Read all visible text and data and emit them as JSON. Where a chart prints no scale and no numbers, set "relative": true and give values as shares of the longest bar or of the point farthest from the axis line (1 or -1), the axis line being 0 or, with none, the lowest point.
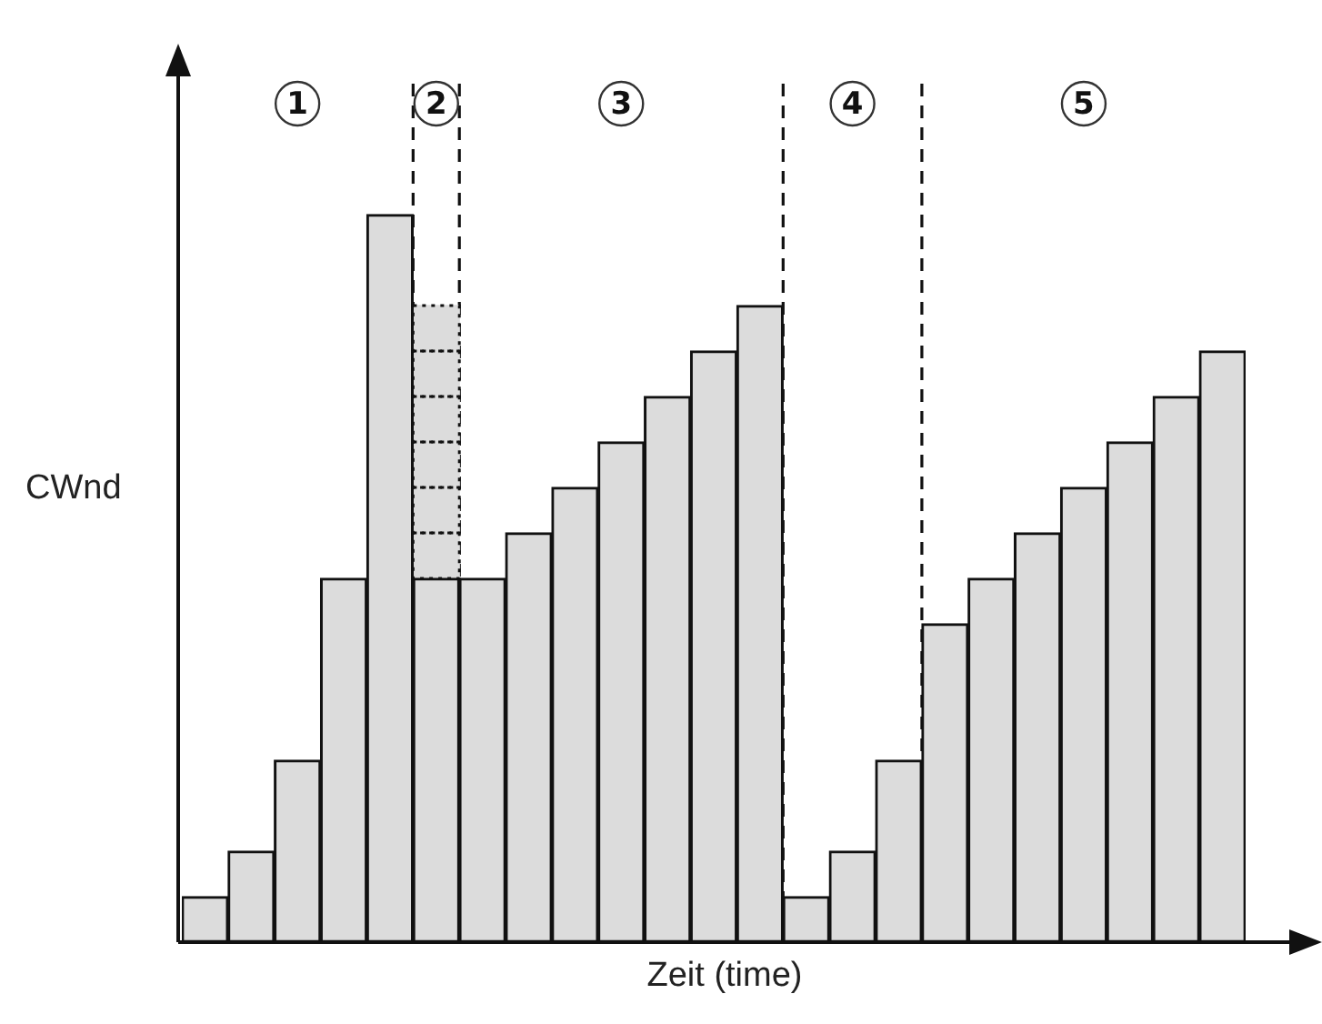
{
  "chart_data": {
    "type": "bar",
    "relative": true,
    "stacked": true,
    "grid": false,
    "legend": false,
    "tick_labels": false,
    "xlabel": "Zeit (time)",
    "ylabel": "CWnd",
    "categories": [
      null,
      null,
      null,
      null,
      null,
      null,
      null,
      null,
      null,
      null,
      null,
      null,
      null,
      null,
      null,
      null,
      null,
      null,
      null,
      null,
      null,
      null,
      null
    ],
    "series": [
      {
        "color": "#dcdcdc",
        "values": [
          0.0625,
          0.125,
          0.25,
          0.5,
          1,
          0.5,
          0.5,
          0.5625,
          0.625,
          0.6875,
          0.75,
          0.8125,
          0.875,
          0.0625,
          0.125,
          0.25,
          0.4375,
          0.5,
          0.5625,
          0.625,
          0.6875,
          0.75,
          0.8125
        ]
      },
      {
        "color": "#dcdcdc",
        "line_style": "dotted",
        "values": [
          null,
          null,
          null,
          null,
          null,
          0.0625,
          null,
          null,
          null,
          null,
          null,
          null,
          null,
          null,
          null,
          null,
          null,
          null,
          null,
          null,
          null,
          null,
          null
        ]
      },
      {
        "color": "#dcdcdc",
        "line_style": "dotted",
        "values": [
          null,
          null,
          null,
          null,
          null,
          0.0625,
          null,
          null,
          null,
          null,
          null,
          null,
          null,
          null,
          null,
          null,
          null,
          null,
          null,
          null,
          null,
          null,
          null
        ]
      },
      {
        "color": "#dcdcdc",
        "line_style": "dotted",
        "values": [
          null,
          null,
          null,
          null,
          null,
          0.0625,
          null,
          null,
          null,
          null,
          null,
          null,
          null,
          null,
          null,
          null,
          null,
          null,
          null,
          null,
          null,
          null,
          null
        ]
      },
      {
        "color": "#dcdcdc",
        "line_style": "dotted",
        "values": [
          null,
          null,
          null,
          null,
          null,
          0.0625,
          null,
          null,
          null,
          null,
          null,
          null,
          null,
          null,
          null,
          null,
          null,
          null,
          null,
          null,
          null,
          null,
          null
        ]
      },
      {
        "color": "#dcdcdc",
        "line_style": "dotted",
        "values": [
          null,
          null,
          null,
          null,
          null,
          0.0625,
          null,
          null,
          null,
          null,
          null,
          null,
          null,
          null,
          null,
          null,
          null,
          null,
          null,
          null,
          null,
          null,
          null
        ]
      },
      {
        "color": "#dcdcdc",
        "line_style": "dotted",
        "values": [
          null,
          null,
          null,
          null,
          null,
          0.0625,
          null,
          null,
          null,
          null,
          null,
          null,
          null,
          null,
          null,
          null,
          null,
          null,
          null,
          null,
          null,
          null,
          null
        ]
      }
    ],
    "annotations": [
      "1",
      "2",
      "3",
      "4",
      "5"
    ]
  }
}
